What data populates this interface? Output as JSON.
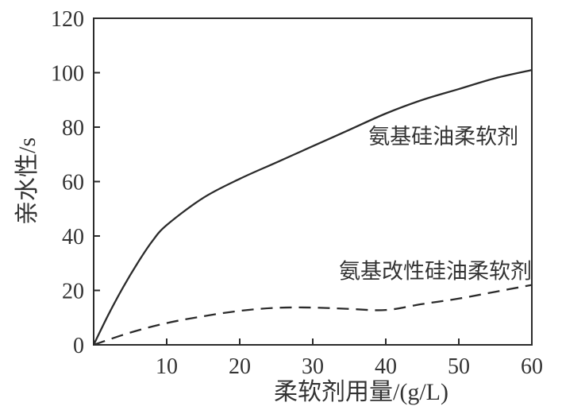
{
  "chart_data": {
    "type": "line",
    "title": "",
    "xlabel": "柔软剂用量/(g/L)",
    "ylabel": "亲水性/s",
    "xlim": [
      0,
      60
    ],
    "ylim": [
      0,
      120
    ],
    "x_ticks": [
      10,
      20,
      30,
      40,
      50,
      60
    ],
    "y_ticks": [
      0,
      20,
      40,
      60,
      80,
      100,
      120
    ],
    "grid": false,
    "legend_position": "inline-labels",
    "stroke_color": "#2b2b2b",
    "text_color": "#333333",
    "background_color": "#ffffff",
    "series": [
      {
        "name": "氨基硅油柔软剂",
        "style": "solid",
        "label_anchor": {
          "x": 47.9,
          "y": 76.5
        },
        "x": [
          0,
          2,
          4,
          6,
          8,
          10,
          15,
          20,
          25,
          30,
          35,
          40,
          45,
          50,
          55,
          60
        ],
        "y": [
          0,
          11,
          21,
          30,
          38,
          44,
          54,
          61,
          67,
          73,
          79,
          85,
          90,
          94,
          98,
          101
        ]
      },
      {
        "name": "氨基改性硅油柔软剂",
        "style": "dashed",
        "label_anchor": {
          "x": 46.8,
          "y": 27
        },
        "x": [
          0,
          5,
          10,
          15,
          20,
          25,
          30,
          35,
          40,
          45,
          50,
          55,
          60
        ],
        "y": [
          0,
          4.5,
          8,
          10.5,
          12.5,
          13.6,
          13.7,
          13.2,
          12.8,
          15,
          17,
          19.5,
          22
        ]
      }
    ]
  }
}
